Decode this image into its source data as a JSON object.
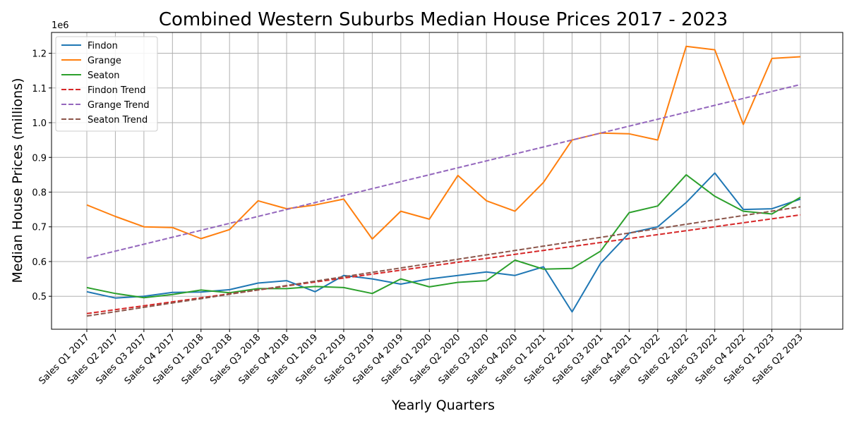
{
  "chart_data": {
    "type": "line",
    "title": "Combined Western Suburbs Median House Prices 2017 - 2023",
    "xlabel": "Yearly Quarters",
    "ylabel": "Median House Prices (millions)",
    "y_offset_label": "1e6",
    "ylim": [
      0.405,
      1.26
    ],
    "yticks": [
      "0.5",
      "0.6",
      "0.7",
      "0.8",
      "0.9",
      "1.0",
      "1.1",
      "1.2"
    ],
    "grid": true,
    "legend_position": "upper-left",
    "categories": [
      "Sales Q1 2017",
      "Sales Q2 2017",
      "Sales Q3 2017",
      "Sales Q4 2017",
      "Sales Q1 2018",
      "Sales Q2 2018",
      "Sales Q3 2018",
      "Sales Q4 2018",
      "Sales Q1 2019",
      "Sales Q2 2019",
      "Sales Q3 2019",
      "Sales Q4 2019",
      "Sales Q1 2020",
      "Sales Q2 2020",
      "Sales Q3 2020",
      "Sales Q4 2020",
      "Sales Q1 2021",
      "Sales Q2 2021",
      "Sales Q3 2021",
      "Sales Q4 2021",
      "Sales Q1 2022",
      "Sales Q2 2022",
      "Sales Q3 2022",
      "Sales Q4 2022",
      "Sales Q1 2023",
      "Sales Q2 2023"
    ],
    "series": [
      {
        "name": "Findon",
        "color": "#1f77b4",
        "dash": "solid",
        "values": [
          0.513,
          0.495,
          0.5,
          0.511,
          0.512,
          0.519,
          0.538,
          0.545,
          0.513,
          0.56,
          0.55,
          0.535,
          0.55,
          0.56,
          0.57,
          0.56,
          0.585,
          0.455,
          0.595,
          0.682,
          0.7,
          0.77,
          0.855,
          0.75,
          0.752,
          0.78
        ]
      },
      {
        "name": "Grange",
        "color": "#ff7f0e",
        "dash": "solid",
        "values": [
          0.763,
          0.73,
          0.7,
          0.698,
          0.666,
          0.692,
          0.775,
          0.752,
          0.763,
          0.78,
          0.665,
          0.745,
          0.722,
          0.848,
          0.775,
          0.745,
          0.828,
          0.95,
          0.97,
          0.968,
          0.95,
          1.22,
          1.21,
          0.995,
          1.185,
          1.19
        ]
      },
      {
        "name": "Seaton",
        "color": "#2ca02c",
        "dash": "solid",
        "values": [
          0.525,
          0.508,
          0.496,
          0.505,
          0.518,
          0.51,
          0.522,
          0.522,
          0.528,
          0.525,
          0.508,
          0.55,
          0.527,
          0.54,
          0.545,
          0.604,
          0.578,
          0.58,
          0.63,
          0.741,
          0.76,
          0.85,
          0.788,
          0.745,
          0.737,
          0.785
        ]
      },
      {
        "name": "Findon Trend",
        "color": "#d62728",
        "dash": "dashed",
        "values": [
          0.45,
          0.4614,
          0.4727,
          0.4841,
          0.4955,
          0.5069,
          0.5182,
          0.5296,
          0.541,
          0.5524,
          0.5637,
          0.5751,
          0.5865,
          0.5979,
          0.6092,
          0.6206,
          0.632,
          0.6434,
          0.6547,
          0.6661,
          0.6775,
          0.6889,
          0.7002,
          0.7116,
          0.723,
          0.7344
        ]
      },
      {
        "name": "Grange Trend",
        "color": "#9467bd",
        "dash": "dashed",
        "values": [
          0.61,
          0.63,
          0.65,
          0.67,
          0.69,
          0.71,
          0.73,
          0.75,
          0.77,
          0.79,
          0.81,
          0.83,
          0.85,
          0.87,
          0.89,
          0.91,
          0.93,
          0.95,
          0.97,
          0.99,
          1.01,
          1.03,
          1.05,
          1.07,
          1.09,
          1.11
        ]
      },
      {
        "name": "Seaton Trend",
        "color": "#8c564b",
        "dash": "dashed",
        "values": [
          0.443,
          0.4556,
          0.4681,
          0.4807,
          0.4932,
          0.5058,
          0.5184,
          0.531,
          0.5436,
          0.5562,
          0.5688,
          0.5814,
          0.594,
          0.6066,
          0.6192,
          0.6318,
          0.6444,
          0.657,
          0.6696,
          0.6822,
          0.6948,
          0.7074,
          0.72,
          0.7326,
          0.7452,
          0.7578
        ]
      }
    ]
  }
}
